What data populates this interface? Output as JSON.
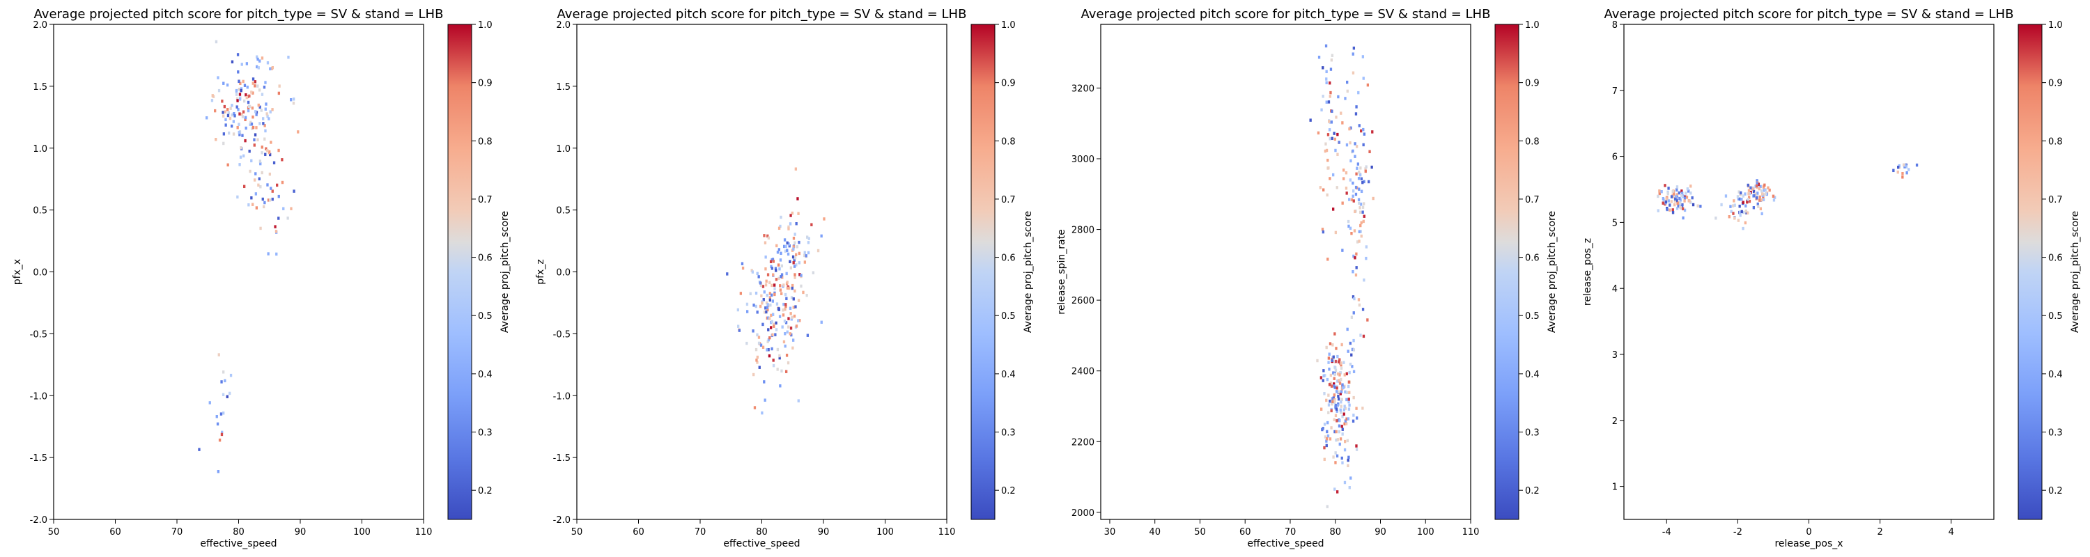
{
  "chart_data": [
    {
      "type": "heatmap",
      "title": "Average projected pitch score for pitch_type = SV & stand = LHB",
      "xlabel": "effective_speed",
      "ylabel": "pfx_x",
      "xlim": [
        50,
        110
      ],
      "ylim": [
        -2.0,
        2.0
      ],
      "xticks": [
        "50",
        "60",
        "70",
        "80",
        "90",
        "100",
        "110"
      ],
      "yticks": [
        "-2.0",
        "-1.5",
        "-1.0",
        "-0.5",
        "0.0",
        "0.5",
        "1.0",
        "1.5",
        "2.0"
      ],
      "colorbar": {
        "label": "Average proj_pitch_score",
        "ticks": [
          "0.2",
          "0.3",
          "0.4",
          "0.5",
          "0.6",
          "0.7",
          "0.8",
          "0.9",
          "1.0"
        ],
        "range": [
          0.15,
          1.0
        ],
        "colormap": "coolwarm"
      },
      "clusters": [
        {
          "x_center": 81,
          "y_center": 1.35,
          "x_spread": 3,
          "y_spread": 0.2,
          "count": 140
        },
        {
          "x_center": 84.5,
          "y_center": 0.75,
          "x_spread": 2,
          "y_spread": 0.25,
          "count": 60
        },
        {
          "x_center": 77,
          "y_center": -1.05,
          "x_spread": 1,
          "y_spread": 0.25,
          "count": 18
        }
      ]
    },
    {
      "type": "heatmap",
      "title": "Average projected pitch score for pitch_type = SV & stand = LHB",
      "xlabel": "effective_speed",
      "ylabel": "pfx_z",
      "xlim": [
        50,
        110
      ],
      "ylim": [
        -2.0,
        2.0
      ],
      "xticks": [
        "50",
        "60",
        "70",
        "80",
        "90",
        "100",
        "110"
      ],
      "yticks": [
        "-2.0",
        "-1.5",
        "-1.0",
        "-0.5",
        "0.0",
        "0.5",
        "1.0",
        "1.5",
        "2.0"
      ],
      "colorbar": {
        "label": "Average proj_pitch_score",
        "ticks": [
          "0.2",
          "0.3",
          "0.4",
          "0.5",
          "0.6",
          "0.7",
          "0.8",
          "0.9",
          "1.0"
        ],
        "range": [
          0.15,
          1.0
        ],
        "colormap": "coolwarm"
      },
      "clusters": [
        {
          "x_center": 81.5,
          "y_center": -0.3,
          "x_spread": 2.5,
          "y_spread": 0.28,
          "count": 200
        },
        {
          "x_center": 85,
          "y_center": 0.2,
          "x_spread": 2,
          "y_spread": 0.2,
          "count": 60
        }
      ]
    },
    {
      "type": "heatmap",
      "title": "Average projected pitch score for pitch_type = SV & stand = LHB",
      "xlabel": "effective_speed",
      "ylabel": "release_spin_rate",
      "xlim": [
        28,
        110
      ],
      "ylim": [
        1980,
        3380
      ],
      "xticks": [
        "30",
        "40",
        "50",
        "60",
        "70",
        "80",
        "90",
        "100",
        "110"
      ],
      "yticks": [
        "2000",
        "2200",
        "2400",
        "2600",
        "2800",
        "3000",
        "3200"
      ],
      "colorbar": {
        "label": "Average proj_pitch_score",
        "ticks": [
          "0.2",
          "0.3",
          "0.4",
          "0.5",
          "0.6",
          "0.7",
          "0.8",
          "0.9",
          "1.0"
        ],
        "range": [
          0.15,
          1.0
        ],
        "colormap": "coolwarm"
      },
      "clusters": [
        {
          "x_center": 80.5,
          "y_center": 2320,
          "x_spread": 2,
          "y_spread": 90,
          "count": 190
        },
        {
          "x_center": 85,
          "y_center": 2880,
          "x_spread": 1.5,
          "y_spread": 190,
          "count": 110
        },
        {
          "x_center": 79,
          "y_center": 3050,
          "x_spread": 1.5,
          "y_spread": 150,
          "count": 60
        }
      ]
    },
    {
      "type": "heatmap",
      "title": "Average projected pitch score for pitch_type = SV & stand = LHB",
      "xlabel": "release_pos_x",
      "ylabel": "release_pos_z",
      "xlim": [
        -5.2,
        5.2
      ],
      "ylim": [
        0.5,
        8.0
      ],
      "xticks": [
        "-4",
        "-2",
        "0",
        "2",
        "4"
      ],
      "yticks": [
        "1",
        "2",
        "3",
        "4",
        "5",
        "6",
        "7",
        "8"
      ],
      "colorbar": {
        "label": "Average proj_pitch_score",
        "ticks": [
          "0.2",
          "0.3",
          "0.4",
          "0.5",
          "0.6",
          "0.7",
          "0.8",
          "0.9",
          "1.0"
        ],
        "range": [
          0.15,
          1.0
        ],
        "colormap": "coolwarm"
      },
      "clusters": [
        {
          "x_center": -3.7,
          "y_center": 5.35,
          "x_spread": 0.25,
          "y_spread": 0.1,
          "count": 90
        },
        {
          "x_center": -1.5,
          "y_center": 5.45,
          "x_spread": 0.2,
          "y_spread": 0.1,
          "count": 60
        },
        {
          "x_center": -1.9,
          "y_center": 5.2,
          "x_spread": 0.35,
          "y_spread": 0.12,
          "count": 40
        },
        {
          "x_center": 2.6,
          "y_center": 5.82,
          "x_spread": 0.15,
          "y_spread": 0.05,
          "count": 15
        }
      ]
    }
  ]
}
